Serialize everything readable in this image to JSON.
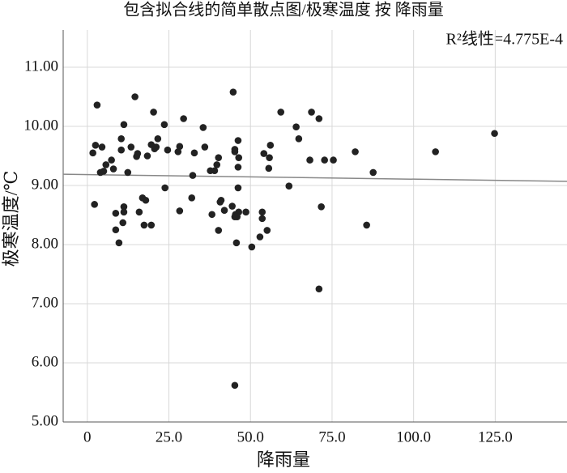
{
  "chart_data": {
    "type": "scatter",
    "title": "包含拟合线的简单散点图/极寒温度 按 降雨量",
    "x_label": "降雨量",
    "y_label": "极寒温度/℃",
    "annotation": "R²线性=4.775E-4",
    "color": "#222222",
    "grid": true,
    "xlim": [
      -7.4,
      147
    ],
    "ylim": [
      5,
      11.63
    ],
    "xticks": [
      0,
      {
        "value": 25,
        "label": "25.0"
      },
      {
        "value": 50,
        "label": "50.0"
      },
      {
        "value": 75,
        "label": "75.0"
      },
      {
        "value": 100,
        "label": "100.0"
      },
      {
        "value": 125,
        "label": "125.0"
      }
    ],
    "yticks": [
      {
        "value": 5,
        "label": "5.00"
      },
      {
        "value": 6,
        "label": "6.00"
      },
      {
        "value": 7,
        "label": "7.00"
      },
      {
        "value": 8,
        "label": "8.00"
      },
      {
        "value": 9,
        "label": "9.00"
      },
      {
        "value": 10,
        "label": "10.00"
      },
      {
        "value": 11,
        "label": "11.00"
      }
    ],
    "fit_line": {
      "color": "#888888",
      "x": [
        -7.4,
        147
      ],
      "y": [
        9.19,
        9.07
      ]
    },
    "x": [
      1.7,
      2.5,
      2.2,
      3,
      4,
      4.5,
      5,
      5.7,
      7.4,
      8,
      8.7,
      8.7,
      9.7,
      10.4,
      10.4,
      11.2,
      11.2,
      10.9,
      11.2,
      12.4,
      13.4,
      14.6,
      15.1,
      15.4,
      15.9,
      16.9,
      17.4,
      17.9,
      18.4,
      19.6,
      19.6,
      20.3,
      20.6,
      21.6,
      21.1,
      23.6,
      23.8,
      24.6,
      27.8,
      28.3,
      29.5,
      28.3,
      32,
      32.3,
      32.8,
      35.5,
      36,
      37.7,
      38.2,
      39,
      39.7,
      40.2,
      40.2,
      40.7,
      41,
      42,
      44.7,
      45.2,
      44.4,
      45.2,
      45.2,
      45.4,
      45.7,
      46.2,
      46.2,
      46.4,
      46.2,
      46.4,
      45.9,
      45.2,
      48.6,
      50.4,
      52.9,
      53.6,
      53.6,
      54.1,
      55.1,
      55.6,
      55.8,
      56.1,
      59.3,
      61.8,
      64,
      64.8,
      68.2,
      68.7,
      71,
      71,
      71.7,
      72.7,
      75.4,
      82.1,
      85.6,
      87.6,
      106.7,
      124.8
    ],
    "values": [
      9.55,
      9.68,
      8.68,
      10.36,
      9.22,
      9.65,
      9.24,
      9.35,
      9.43,
      9.28,
      8.53,
      8.25,
      8.03,
      9.6,
      9.79,
      10.03,
      8.55,
      8.37,
      8.64,
      9.22,
      9.65,
      10.5,
      9.49,
      9.54,
      8.55,
      8.79,
      8.33,
      8.75,
      9.5,
      9.69,
      8.33,
      10.24,
      9.62,
      9.79,
      9.65,
      10.03,
      8.96,
      9.6,
      9.57,
      8.57,
      10.13,
      9.66,
      8.79,
      9.17,
      9.55,
      9.98,
      9.65,
      9.25,
      8.51,
      9.25,
      9.35,
      9.47,
      8.24,
      8.72,
      8.75,
      8.58,
      10.58,
      9.61,
      8.65,
      8.47,
      9.57,
      8.51,
      8.03,
      9.76,
      9.31,
      9.47,
      8.96,
      8.55,
      8.47,
      5.62,
      8.55,
      7.96,
      8.13,
      8.44,
      8.55,
      9.54,
      8.24,
      9.29,
      9.47,
      9.68,
      10.24,
      8.99,
      9.99,
      9.79,
      9.43,
      10.24,
      10.13,
      7.25,
      8.64,
      9.43,
      9.43,
      9.57,
      8.33,
      9.22,
      9.57,
      9.88
    ]
  }
}
